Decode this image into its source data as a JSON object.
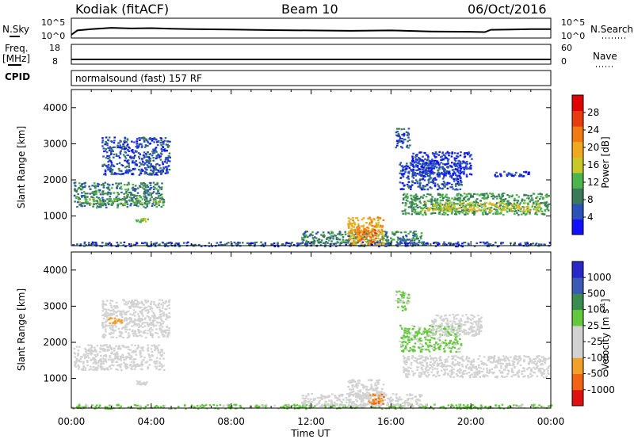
{
  "header": {
    "station": "Kodiak (fitACF)",
    "beam": "Beam 10",
    "date": "06/Oct/2016"
  },
  "noise_panel": {
    "left_label": "N.Sky",
    "right_label": "N.Search",
    "left_ticks": [
      "10^5",
      "10^0"
    ],
    "right_ticks": [
      "10^5",
      "10^0"
    ]
  },
  "freq_panel": {
    "left_label_top": "Freq.",
    "left_label_bottom": "[MHz]",
    "right_label": "Nave",
    "left_ticks": [
      "18",
      "8"
    ],
    "right_ticks": [
      "60",
      "0"
    ]
  },
  "cpid_panel": {
    "label": "CPID",
    "value": "normalsound (fast) 157 RF"
  },
  "x_axis": {
    "label": "Time UT",
    "ticks": [
      "00:00",
      "04:00",
      "08:00",
      "12:00",
      "16:00",
      "20:00",
      "00:00"
    ]
  },
  "colors": {
    "power_scale": [
      "#1010ff",
      "#2a52b8",
      "#3a7a5a",
      "#4db44d",
      "#c8c82a",
      "#f0a81e",
      "#f07a14",
      "#e83c10",
      "#e00000"
    ],
    "velocity_scale": [
      "#e01010",
      "#f06414",
      "#f0a028",
      "#d2d2d2",
      "#d2d2d2",
      "#64c83c",
      "#3c8c50",
      "#3c5ab4",
      "#2828c8"
    ]
  },
  "chart_data": [
    {
      "type": "line",
      "panel": "noise",
      "x": [
        0,
        0.3,
        1,
        2,
        3,
        4,
        5,
        6,
        8,
        10,
        12,
        14,
        16,
        18,
        20,
        20.7,
        21,
        22,
        23,
        24
      ],
      "series": [
        {
          "values": [
            0.5,
            1.8,
            2.2,
            2.6,
            2.4,
            2.5,
            2.3,
            2.2,
            2.1,
            1.9,
            1.8,
            1.7,
            1.8,
            1.5,
            1.4,
            1.3,
            2.0,
            2.1,
            2.2,
            2.2
          ]
        }
      ],
      "ytick_labels": [
        "10^0",
        "10^5"
      ],
      "xlim": [
        0,
        24
      ]
    },
    {
      "type": "line",
      "panel": "frequency",
      "x": [
        0,
        24
      ],
      "series": [
        {
          "values": [
            10.4,
            10.4
          ]
        }
      ],
      "ylim": [
        8,
        18
      ],
      "ytick_labels": [
        "8",
        "18"
      ],
      "xlim": [
        0,
        24
      ]
    },
    {
      "type": "heatmap",
      "panel": "power",
      "ylabel": "Slant Range [km]",
      "colorbar_label": "Power [dB]",
      "colorbar_ticks": [
        4,
        8,
        12,
        16,
        20,
        24,
        28
      ],
      "xlim": [
        0,
        24
      ],
      "ylim": [
        180,
        4500
      ],
      "yticks": [
        1000,
        2000,
        3000,
        4000
      ],
      "regions": [
        {
          "t0": 0.1,
          "t1": 4.6,
          "r0": 1250,
          "r1": 1950,
          "level": 12
        },
        {
          "t0": 0.3,
          "t1": 4.4,
          "r0": 1350,
          "r1": 1500,
          "level": 16
        },
        {
          "t0": 1.5,
          "t1": 4.9,
          "r0": 2150,
          "r1": 3200,
          "level": 8
        },
        {
          "t0": 3.2,
          "t1": 3.8,
          "r0": 850,
          "r1": 950,
          "level": 18
        },
        {
          "t0": 0,
          "t1": 24,
          "r0": 180,
          "r1": 300,
          "level": 8
        },
        {
          "t0": 11.5,
          "t1": 17.5,
          "r0": 250,
          "r1": 600,
          "level": 12
        },
        {
          "t0": 13.8,
          "t1": 15.6,
          "r0": 200,
          "r1": 1000,
          "level": 24
        },
        {
          "t0": 14.3,
          "t1": 15.2,
          "r0": 300,
          "r1": 750,
          "level": 28
        },
        {
          "t0": 16.5,
          "t1": 23.9,
          "r0": 1050,
          "r1": 1650,
          "level": 14
        },
        {
          "t0": 17.5,
          "t1": 23.5,
          "r0": 1150,
          "r1": 1400,
          "level": 20
        },
        {
          "t0": 16.4,
          "t1": 19.5,
          "r0": 1750,
          "r1": 2500,
          "level": 8
        },
        {
          "t0": 17.0,
          "t1": 20.0,
          "r0": 2100,
          "r1": 2800,
          "level": 6
        },
        {
          "t0": 16.2,
          "t1": 16.9,
          "r0": 2900,
          "r1": 3450,
          "level": 8
        },
        {
          "t0": 21.0,
          "t1": 23.0,
          "r0": 2100,
          "r1": 2250,
          "level": 6
        }
      ]
    },
    {
      "type": "heatmap",
      "panel": "velocity",
      "ylabel": "Slant Range [km]",
      "colorbar_label": "Velocity [m s^-1]",
      "colorbar_ticks": [
        -1000,
        -500,
        -100,
        -25,
        25,
        100,
        500,
        1000
      ],
      "xlim": [
        0,
        24
      ],
      "ylim": [
        180,
        4500
      ],
      "yticks": [
        1000,
        2000,
        3000,
        4000
      ],
      "regions": [
        {
          "t0": 0.1,
          "t1": 4.6,
          "r0": 1250,
          "r1": 1950,
          "value": 0
        },
        {
          "t0": 1.5,
          "t1": 4.9,
          "r0": 2150,
          "r1": 3200,
          "value": 0
        },
        {
          "t0": 1.8,
          "t1": 2.5,
          "r0": 2550,
          "r1": 2700,
          "value": -200
        },
        {
          "t0": 3.2,
          "t1": 3.8,
          "r0": 850,
          "r1": 950,
          "value": 0
        },
        {
          "t0": 0,
          "t1": 24,
          "r0": 180,
          "r1": 300,
          "value": 60
        },
        {
          "t0": 11.5,
          "t1": 17.5,
          "r0": 250,
          "r1": 600,
          "value": 0
        },
        {
          "t0": 13.8,
          "t1": 15.6,
          "r0": 200,
          "r1": 1000,
          "value": 0
        },
        {
          "t0": 14.8,
          "t1": 15.6,
          "r0": 300,
          "r1": 600,
          "value": -300
        },
        {
          "t0": 16.5,
          "t1": 23.9,
          "r0": 1050,
          "r1": 1650,
          "value": 0
        },
        {
          "t0": 16.4,
          "t1": 19.5,
          "r0": 1750,
          "r1": 2500,
          "value": 60
        },
        {
          "t0": 16.2,
          "t1": 16.9,
          "r0": 2900,
          "r1": 3450,
          "value": 60
        },
        {
          "t0": 18.0,
          "t1": 20.5,
          "r0": 2200,
          "r1": 2800,
          "value": 0
        }
      ]
    }
  ]
}
